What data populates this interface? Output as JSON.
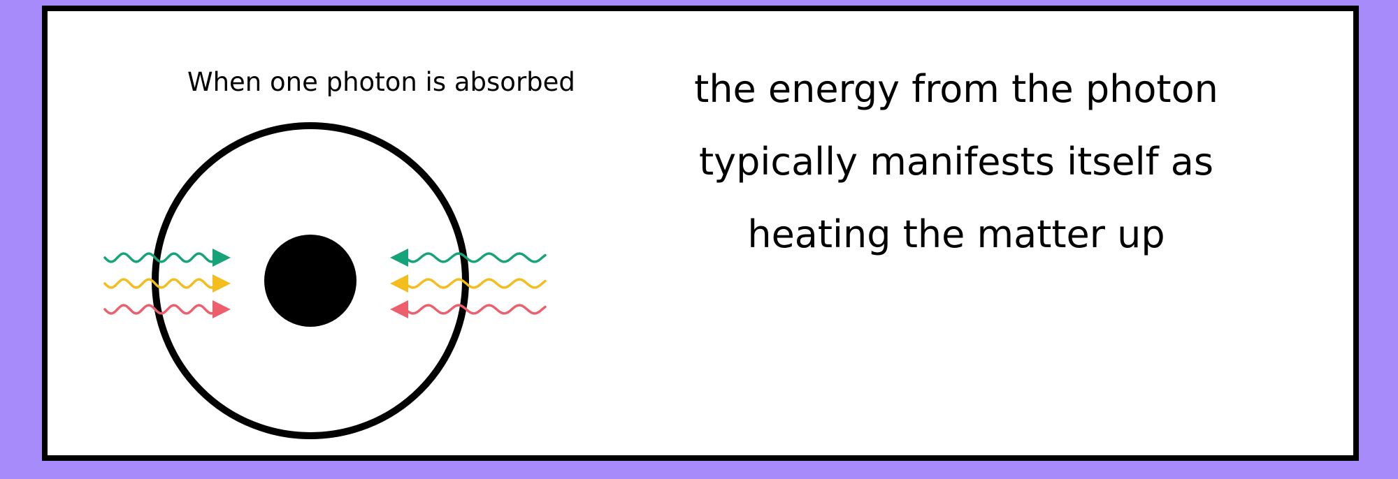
{
  "caption": "When one photon is absorbed",
  "explanation": {
    "lines": [
      "the energy from the photon",
      "typically manifests itself as",
      "heating the matter up"
    ]
  },
  "colors": {
    "background": "#a78bfa",
    "panel": "#ffffff",
    "outline": "#000000",
    "photon_green": "#16a37a",
    "photon_yellow": "#f2bd1d",
    "photon_red": "#ec5f6c"
  },
  "photons": [
    {
      "color": "green",
      "direction": "incoming-left"
    },
    {
      "color": "yellow",
      "direction": "incoming-left"
    },
    {
      "color": "red",
      "direction": "incoming-left"
    },
    {
      "color": "green",
      "direction": "incoming-right"
    },
    {
      "color": "yellow",
      "direction": "incoming-right"
    },
    {
      "color": "red",
      "direction": "incoming-right"
    }
  ]
}
